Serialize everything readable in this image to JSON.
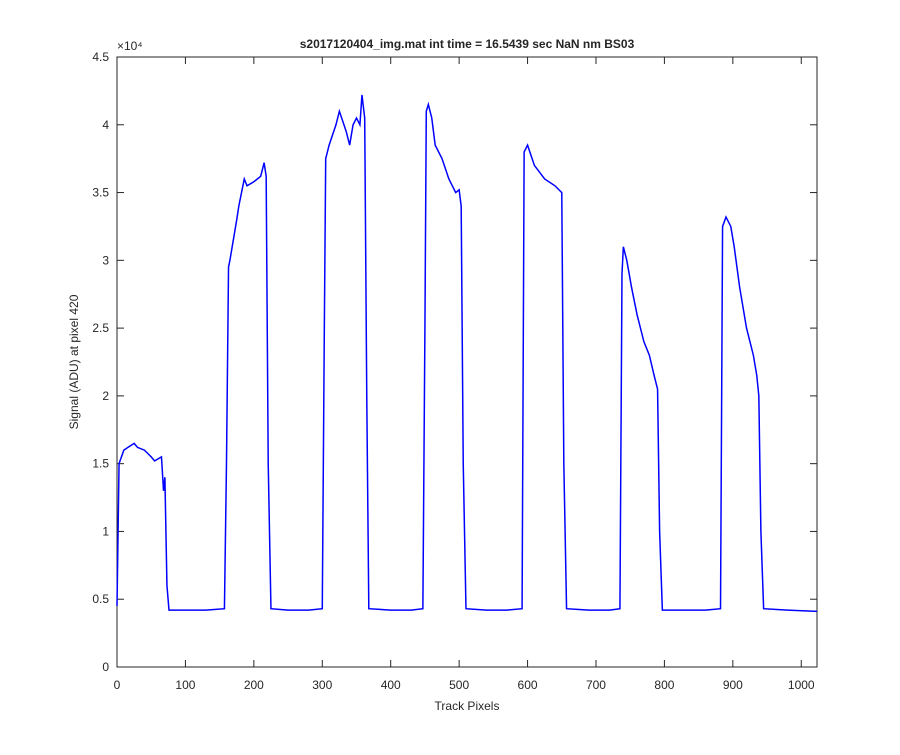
{
  "chart_data": {
    "type": "line",
    "title": "s2017120404_img.mat int time = 16.5439 sec  NaN nm BS03",
    "x_label": "Track Pixels",
    "y_label": "Signal (ADU) at pixel 420",
    "y_multiplier": "×10⁴",
    "xlim": [
      0,
      1023
    ],
    "ylim": [
      0,
      4.5
    ],
    "xticks": [
      0,
      100,
      200,
      300,
      400,
      500,
      600,
      700,
      800,
      900,
      1000
    ],
    "yticks": [
      0,
      0.5,
      1,
      1.5,
      2,
      2.5,
      3,
      3.5,
      4,
      4.5
    ],
    "series": [
      {
        "color": "#0000ff",
        "x": [
          0,
          3,
          10,
          25,
          30,
          40,
          50,
          55,
          65,
          68,
          70,
          73,
          76,
          100,
          130,
          157,
          160,
          163,
          165,
          170,
          175,
          178,
          182,
          186,
          190,
          200,
          210,
          215,
          218,
          221,
          225,
          250,
          280,
          300,
          303,
          305,
          310,
          320,
          325,
          335,
          340,
          345,
          350,
          355,
          358,
          362,
          365,
          368,
          400,
          430,
          447,
          450,
          452,
          455,
          460,
          465,
          475,
          485,
          495,
          500,
          503,
          506,
          510,
          540,
          570,
          592,
          595,
          600,
          610,
          625,
          640,
          650,
          653,
          657,
          690,
          720,
          735,
          738,
          740,
          745,
          752,
          760,
          770,
          778,
          785,
          790,
          793,
          797,
          830,
          860,
          882,
          885,
          890,
          897,
          902,
          910,
          920,
          930,
          935,
          938,
          941,
          945,
          980,
          1023
        ],
        "values": [
          0.45,
          1.5,
          1.6,
          1.65,
          1.62,
          1.6,
          1.55,
          1.52,
          1.55,
          1.3,
          1.4,
          0.6,
          0.42,
          0.42,
          0.42,
          0.43,
          1.5,
          2.95,
          3.0,
          3.15,
          3.3,
          3.4,
          3.5,
          3.6,
          3.55,
          3.58,
          3.62,
          3.72,
          3.62,
          1.5,
          0.43,
          0.42,
          0.42,
          0.43,
          2.5,
          3.75,
          3.85,
          4.0,
          4.1,
          3.95,
          3.85,
          4.0,
          4.05,
          4.0,
          4.22,
          4.05,
          2.0,
          0.43,
          0.42,
          0.42,
          0.43,
          2.5,
          4.1,
          4.15,
          4.05,
          3.85,
          3.75,
          3.6,
          3.5,
          3.52,
          3.4,
          1.5,
          0.43,
          0.42,
          0.42,
          0.43,
          3.8,
          3.85,
          3.7,
          3.6,
          3.55,
          3.5,
          1.5,
          0.43,
          0.42,
          0.42,
          0.43,
          2.9,
          3.1,
          3.0,
          2.8,
          2.6,
          2.4,
          2.3,
          2.15,
          2.05,
          1.0,
          0.42,
          0.42,
          0.42,
          0.43,
          3.25,
          3.32,
          3.25,
          3.1,
          2.8,
          2.5,
          2.3,
          2.15,
          2.0,
          1.0,
          0.43,
          0.42,
          0.41
        ]
      }
    ]
  }
}
